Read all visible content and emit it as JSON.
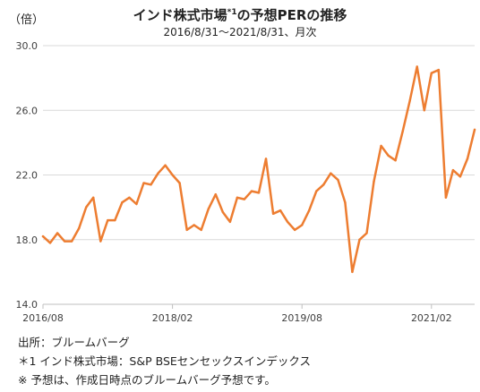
{
  "chart_data": {
    "type": "line",
    "title_main": "インド株式市場",
    "title_sup": "*1",
    "title_rest": "の予想PERの推移",
    "subtitle": "2016/8/31〜2021/8/31、月次",
    "unit_label": "（倍）",
    "ylim": [
      14,
      30
    ],
    "y_ticks": [
      "14.0",
      "18.0",
      "22.0",
      "26.0",
      "30.0"
    ],
    "x_ticks": [
      "2016/08",
      "2018/02",
      "2019/08",
      "2021/02"
    ],
    "x_tick_indices": [
      0,
      18,
      36,
      54
    ],
    "grid": true,
    "line_color": "#ED7D31",
    "series": [
      {
        "values": [
          18.2,
          17.8,
          18.4,
          17.9,
          17.9,
          18.7,
          20.0,
          20.6,
          17.9,
          19.2,
          19.2,
          20.3,
          20.6,
          20.2,
          21.5,
          21.4,
          22.1,
          22.6,
          22.0,
          21.5,
          18.6,
          18.9,
          18.6,
          19.9,
          20.8,
          19.7,
          19.1,
          20.6,
          20.5,
          21.0,
          20.9,
          23.0,
          19.6,
          19.8,
          19.1,
          18.6,
          18.9,
          19.8,
          21.0,
          21.4,
          22.1,
          21.7,
          20.3,
          16.0,
          18.0,
          18.4,
          21.6,
          23.8,
          23.2,
          22.9,
          24.7,
          26.6,
          28.7,
          26.0,
          28.3,
          28.5,
          20.6,
          22.3,
          21.9,
          23.0,
          24.8
        ]
      }
    ]
  },
  "notes": {
    "source": "出所：ブルームバーグ",
    "footnote1": "＊1 インド株式市場：S&P BSEセンセックスインデックス",
    "footnote2": "※ 予想は、作成日時点のブルームバーグ予想です。"
  }
}
